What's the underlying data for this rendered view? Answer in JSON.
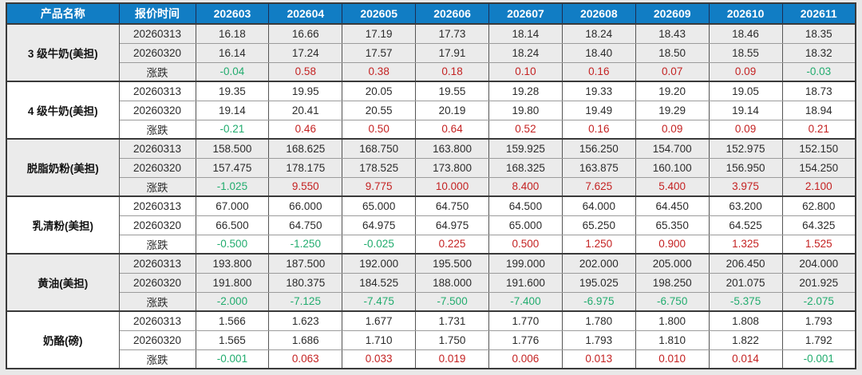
{
  "colors": {
    "header_bg": "#117dc4",
    "header_text": "#ffffff",
    "up_red": "#c42222",
    "down_green": "#21ac6e",
    "block_alt_bg": "#ebebeb",
    "block_bg": "#ffffff"
  },
  "chart_data": {
    "type": "table",
    "title": "",
    "columns": [
      "产品名称",
      "报价时间",
      "202603",
      "202604",
      "202605",
      "202606",
      "202607",
      "202608",
      "202609",
      "202610",
      "202611"
    ],
    "change_row_label": "涨跌",
    "groups": [
      {
        "name": "3 级牛奶(美担)",
        "rows": [
          {
            "label": "20260313",
            "change": false,
            "values": [
              "16.18",
              "16.66",
              "17.19",
              "17.73",
              "18.14",
              "18.24",
              "18.43",
              "18.46",
              "18.35"
            ]
          },
          {
            "label": "20260320",
            "change": false,
            "values": [
              "16.14",
              "17.24",
              "17.57",
              "17.91",
              "18.24",
              "18.40",
              "18.50",
              "18.55",
              "18.32"
            ]
          },
          {
            "label": "涨跌",
            "change": true,
            "values": [
              "-0.04",
              "0.58",
              "0.38",
              "0.18",
              "0.10",
              "0.16",
              "0.07",
              "0.09",
              "-0.03"
            ]
          }
        ]
      },
      {
        "name": "4 级牛奶(美担)",
        "rows": [
          {
            "label": "20260313",
            "change": false,
            "values": [
              "19.35",
              "19.95",
              "20.05",
              "19.55",
              "19.28",
              "19.33",
              "19.20",
              "19.05",
              "18.73"
            ]
          },
          {
            "label": "20260320",
            "change": false,
            "values": [
              "19.14",
              "20.41",
              "20.55",
              "20.19",
              "19.80",
              "19.49",
              "19.29",
              "19.14",
              "18.94"
            ]
          },
          {
            "label": "涨跌",
            "change": true,
            "values": [
              "-0.21",
              "0.46",
              "0.50",
              "0.64",
              "0.52",
              "0.16",
              "0.09",
              "0.09",
              "0.21"
            ]
          }
        ]
      },
      {
        "name": "脱脂奶粉(美担)",
        "rows": [
          {
            "label": "20260313",
            "change": false,
            "values": [
              "158.500",
              "168.625",
              "168.750",
              "163.800",
              "159.925",
              "156.250",
              "154.700",
              "152.975",
              "152.150"
            ]
          },
          {
            "label": "20260320",
            "change": false,
            "values": [
              "157.475",
              "178.175",
              "178.525",
              "173.800",
              "168.325",
              "163.875",
              "160.100",
              "156.950",
              "154.250"
            ]
          },
          {
            "label": "涨跌",
            "change": true,
            "values": [
              "-1.025",
              "9.550",
              "9.775",
              "10.000",
              "8.400",
              "7.625",
              "5.400",
              "3.975",
              "2.100"
            ]
          }
        ]
      },
      {
        "name": "乳清粉(美担)",
        "rows": [
          {
            "label": "20260313",
            "change": false,
            "values": [
              "67.000",
              "66.000",
              "65.000",
              "64.750",
              "64.500",
              "64.000",
              "64.450",
              "63.200",
              "62.800"
            ]
          },
          {
            "label": "20260320",
            "change": false,
            "values": [
              "66.500",
              "64.750",
              "64.975",
              "64.975",
              "65.000",
              "65.250",
              "65.350",
              "64.525",
              "64.325"
            ]
          },
          {
            "label": "涨跌",
            "change": true,
            "values": [
              "-0.500",
              "-1.250",
              "-0.025",
              "0.225",
              "0.500",
              "1.250",
              "0.900",
              "1.325",
              "1.525"
            ]
          }
        ]
      },
      {
        "name": "黄油(美担)",
        "rows": [
          {
            "label": "20260313",
            "change": false,
            "values": [
              "193.800",
              "187.500",
              "192.000",
              "195.500",
              "199.000",
              "202.000",
              "205.000",
              "206.450",
              "204.000"
            ]
          },
          {
            "label": "20260320",
            "change": false,
            "values": [
              "191.800",
              "180.375",
              "184.525",
              "188.000",
              "191.600",
              "195.025",
              "198.250",
              "201.075",
              "201.925"
            ]
          },
          {
            "label": "涨跌",
            "change": true,
            "values": [
              "-2.000",
              "-7.125",
              "-7.475",
              "-7.500",
              "-7.400",
              "-6.975",
              "-6.750",
              "-5.375",
              "-2.075"
            ]
          }
        ]
      },
      {
        "name": "奶酪(磅)",
        "rows": [
          {
            "label": "20260313",
            "change": false,
            "values": [
              "1.566",
              "1.623",
              "1.677",
              "1.731",
              "1.770",
              "1.780",
              "1.800",
              "1.808",
              "1.793"
            ]
          },
          {
            "label": "20260320",
            "change": false,
            "values": [
              "1.565",
              "1.686",
              "1.710",
              "1.750",
              "1.776",
              "1.793",
              "1.810",
              "1.822",
              "1.792"
            ]
          },
          {
            "label": "涨跌",
            "change": true,
            "values": [
              "-0.001",
              "0.063",
              "0.033",
              "0.019",
              "0.006",
              "0.013",
              "0.010",
              "0.014",
              "-0.001"
            ]
          }
        ]
      }
    ]
  }
}
